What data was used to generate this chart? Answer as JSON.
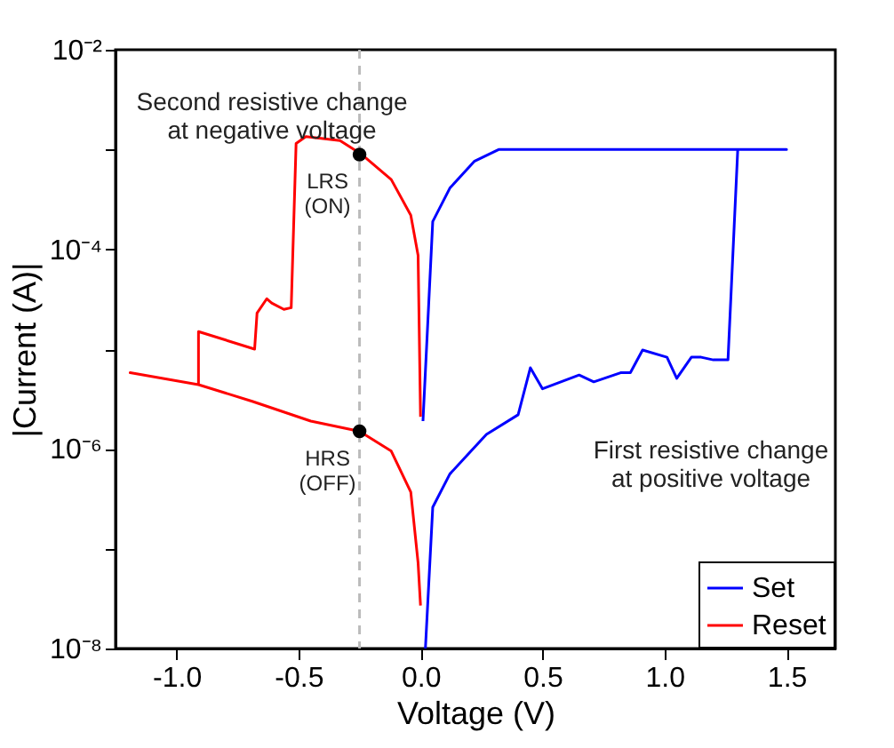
{
  "chart_data": {
    "type": "line",
    "xlabel": "Voltage (V)",
    "ylabel": "|Current (A)|",
    "log": "y",
    "xlim": [
      -1.25,
      1.7
    ],
    "ylim": [
      1e-08,
      0.01
    ],
    "xticks": [
      {
        "value": -1,
        "label": "-1.0"
      },
      {
        "value": -0.5,
        "label": "-0.5"
      },
      {
        "value": 0,
        "label": "0.0"
      },
      {
        "value": 0.5,
        "label": "0.5"
      },
      {
        "value": 1,
        "label": "1.0"
      },
      {
        "value": 1.5,
        "label": "1.5"
      }
    ],
    "yticks": [
      {
        "value": 1e-08,
        "label": "10⁻⁸"
      },
      {
        "value": 1e-07,
        "label": null
      },
      {
        "value": 1e-06,
        "label": "10⁻⁶"
      },
      {
        "value": 1e-05,
        "label": null
      },
      {
        "value": 0.0001,
        "label": "10⁻⁴"
      },
      {
        "value": 0.001,
        "label": null
      },
      {
        "value": 0.01,
        "label": "10⁻²"
      }
    ],
    "grid": false,
    "legend": "bottom right",
    "marker": "none",
    "line_style": "solid",
    "series": [
      {
        "name": "Set",
        "color": "#0000ff",
        "x": [
          0.02,
          0.05,
          0.12,
          0.27,
          0.4,
          0.45,
          0.5,
          0.65,
          0.71,
          0.82,
          0.86,
          0.91,
          1.01,
          1.05,
          1.11,
          1.15,
          1.2,
          1.26,
          1.3,
          1.5,
          0.32,
          0.22,
          0.12,
          0.05,
          0.01
        ],
        "values": [
          1e-08,
          2.6e-07,
          5.6e-07,
          1.4e-06,
          2.2e-06,
          6.5e-06,
          4e-06,
          5.5e-06,
          4.7e-06,
          5.8e-06,
          5.8e-06,
          9.8e-06,
          8.3e-06,
          5.1e-06,
          8.3e-06,
          8.3e-06,
          7.8e-06,
          7.8e-06,
          0.001,
          0.001,
          0.001,
          0.00076,
          0.00041,
          0.00019,
          1.9e-06
        ]
      },
      {
        "name": "Reset",
        "color": "#ff0000",
        "x": [
          0.0,
          -0.01,
          -0.04,
          -0.12,
          -0.25,
          -0.45,
          -0.69,
          -0.91,
          -1.19,
          -0.91,
          -0.91,
          -0.68,
          -0.67,
          -0.63,
          -0.61,
          -0.56,
          -0.53,
          -0.51,
          -0.47,
          -0.33,
          -0.24,
          -0.12,
          -0.04,
          -0.01,
          0.0
        ],
        "values": [
          2.7e-08,
          7.2e-08,
          3.7e-07,
          9.5e-07,
          1.5e-06,
          1.9e-06,
          3e-06,
          4.4e-06,
          5.8e-06,
          4.4e-06,
          1.5e-05,
          1e-05,
          2.3e-05,
          3.2e-05,
          2.9e-05,
          2.5e-05,
          2.6e-05,
          0.00115,
          0.00135,
          0.00123,
          0.00089,
          0.0005,
          0.00022,
          8.7e-05,
          2.1e-06
        ]
      },
      {
        "color": "#000000",
        "type": "scatter",
        "marker": "circle",
        "x": [
          -0.25,
          -0.25
        ],
        "values": [
          0.00089,
          1.5e-06
        ]
      }
    ],
    "ref_lines": [
      {
        "axis": "x",
        "value": -0.25,
        "color": "#bbbbbb",
        "line_style": "dashed"
      }
    ],
    "annotations": [
      "Second resistive change\nat negative voltage",
      {
        "text": "LRS\n(ON)",
        "x": -0.25,
        "y": 0.00089
      },
      {
        "text": "HRS\n(OFF)",
        "x": -0.25,
        "y": 1.5e-06
      },
      "First resistive change\nat positive voltage"
    ]
  }
}
